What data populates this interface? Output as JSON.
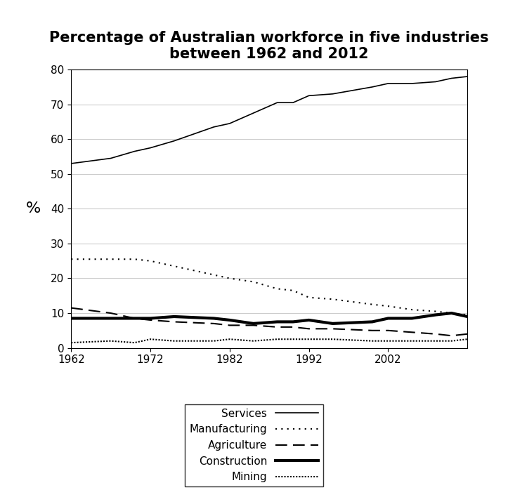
{
  "chart_data": {
    "type": "line",
    "title": "Percentage of Australian workforce in five industries between 1962 and 2012",
    "y_label": "%",
    "x": [
      1962,
      1967,
      1970,
      1972,
      1975,
      1980,
      1982,
      1985,
      1988,
      1990,
      1992,
      1995,
      2000,
      2002,
      2005,
      2008,
      2010,
      2012
    ],
    "series": [
      {
        "name": "Services",
        "color": "#000000",
        "line_style": "solid",
        "values": [
          53,
          54.5,
          56.5,
          57.5,
          59.5,
          63.5,
          64.5,
          67.5,
          70.5,
          70.5,
          72.5,
          73,
          75,
          76,
          76,
          76.5,
          77.5,
          78
        ]
      },
      {
        "name": "Manufacturing",
        "color": "#000000",
        "line_style": "dotted",
        "values": [
          25.5,
          25.5,
          25.5,
          25,
          23.5,
          21,
          20,
          19,
          17,
          16.5,
          14.5,
          14,
          12.5,
          12,
          11,
          10.5,
          10,
          9.5
        ]
      },
      {
        "name": "Agriculture",
        "color": "#000000",
        "line_style": "dashed",
        "values": [
          11.5,
          10,
          8.5,
          8,
          7.5,
          7,
          6.5,
          6.5,
          6,
          6,
          5.5,
          5.5,
          5,
          5,
          4.5,
          4,
          3.5,
          4
        ]
      },
      {
        "name": "Construction",
        "color": "#000000",
        "line_style": "thick",
        "values": [
          8.5,
          8.5,
          8.5,
          8.5,
          9,
          8.5,
          8,
          7,
          7.5,
          7.5,
          8,
          7,
          7.5,
          8.5,
          8.5,
          9.5,
          10,
          9
        ]
      },
      {
        "name": "Mining",
        "color": "#000000",
        "line_style": "densely dotted",
        "values": [
          1.5,
          2,
          1.5,
          2.5,
          2,
          2,
          2.5,
          2,
          2.5,
          2.5,
          2.5,
          2.5,
          2,
          2,
          2,
          2,
          2,
          2.5
        ]
      }
    ],
    "xlim": [
      1962,
      2012
    ],
    "xticks": [
      1962,
      1972,
      1982,
      1992,
      2002
    ],
    "ylim": [
      0,
      80
    ],
    "yticks": [
      0,
      10,
      20,
      30,
      40,
      50,
      60,
      70,
      80
    ],
    "grid": "y",
    "legend": "lower center"
  }
}
